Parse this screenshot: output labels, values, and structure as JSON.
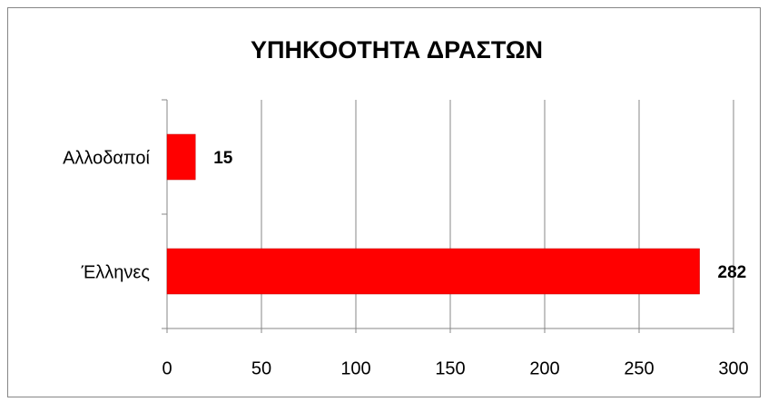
{
  "chart_data": {
    "type": "bar",
    "orientation": "horizontal",
    "title": "ΥΠΗΚΟΟΤΗΤΑ ΔΡΑΣΤΩΝ",
    "categories": [
      "Αλλοδαποί",
      "Έλληνες"
    ],
    "values": [
      15,
      282
    ],
    "color": "#ff0000",
    "xlim": [
      0,
      300
    ],
    "xticks": [
      0,
      50,
      100,
      150,
      200,
      250,
      300
    ],
    "grid": true
  }
}
